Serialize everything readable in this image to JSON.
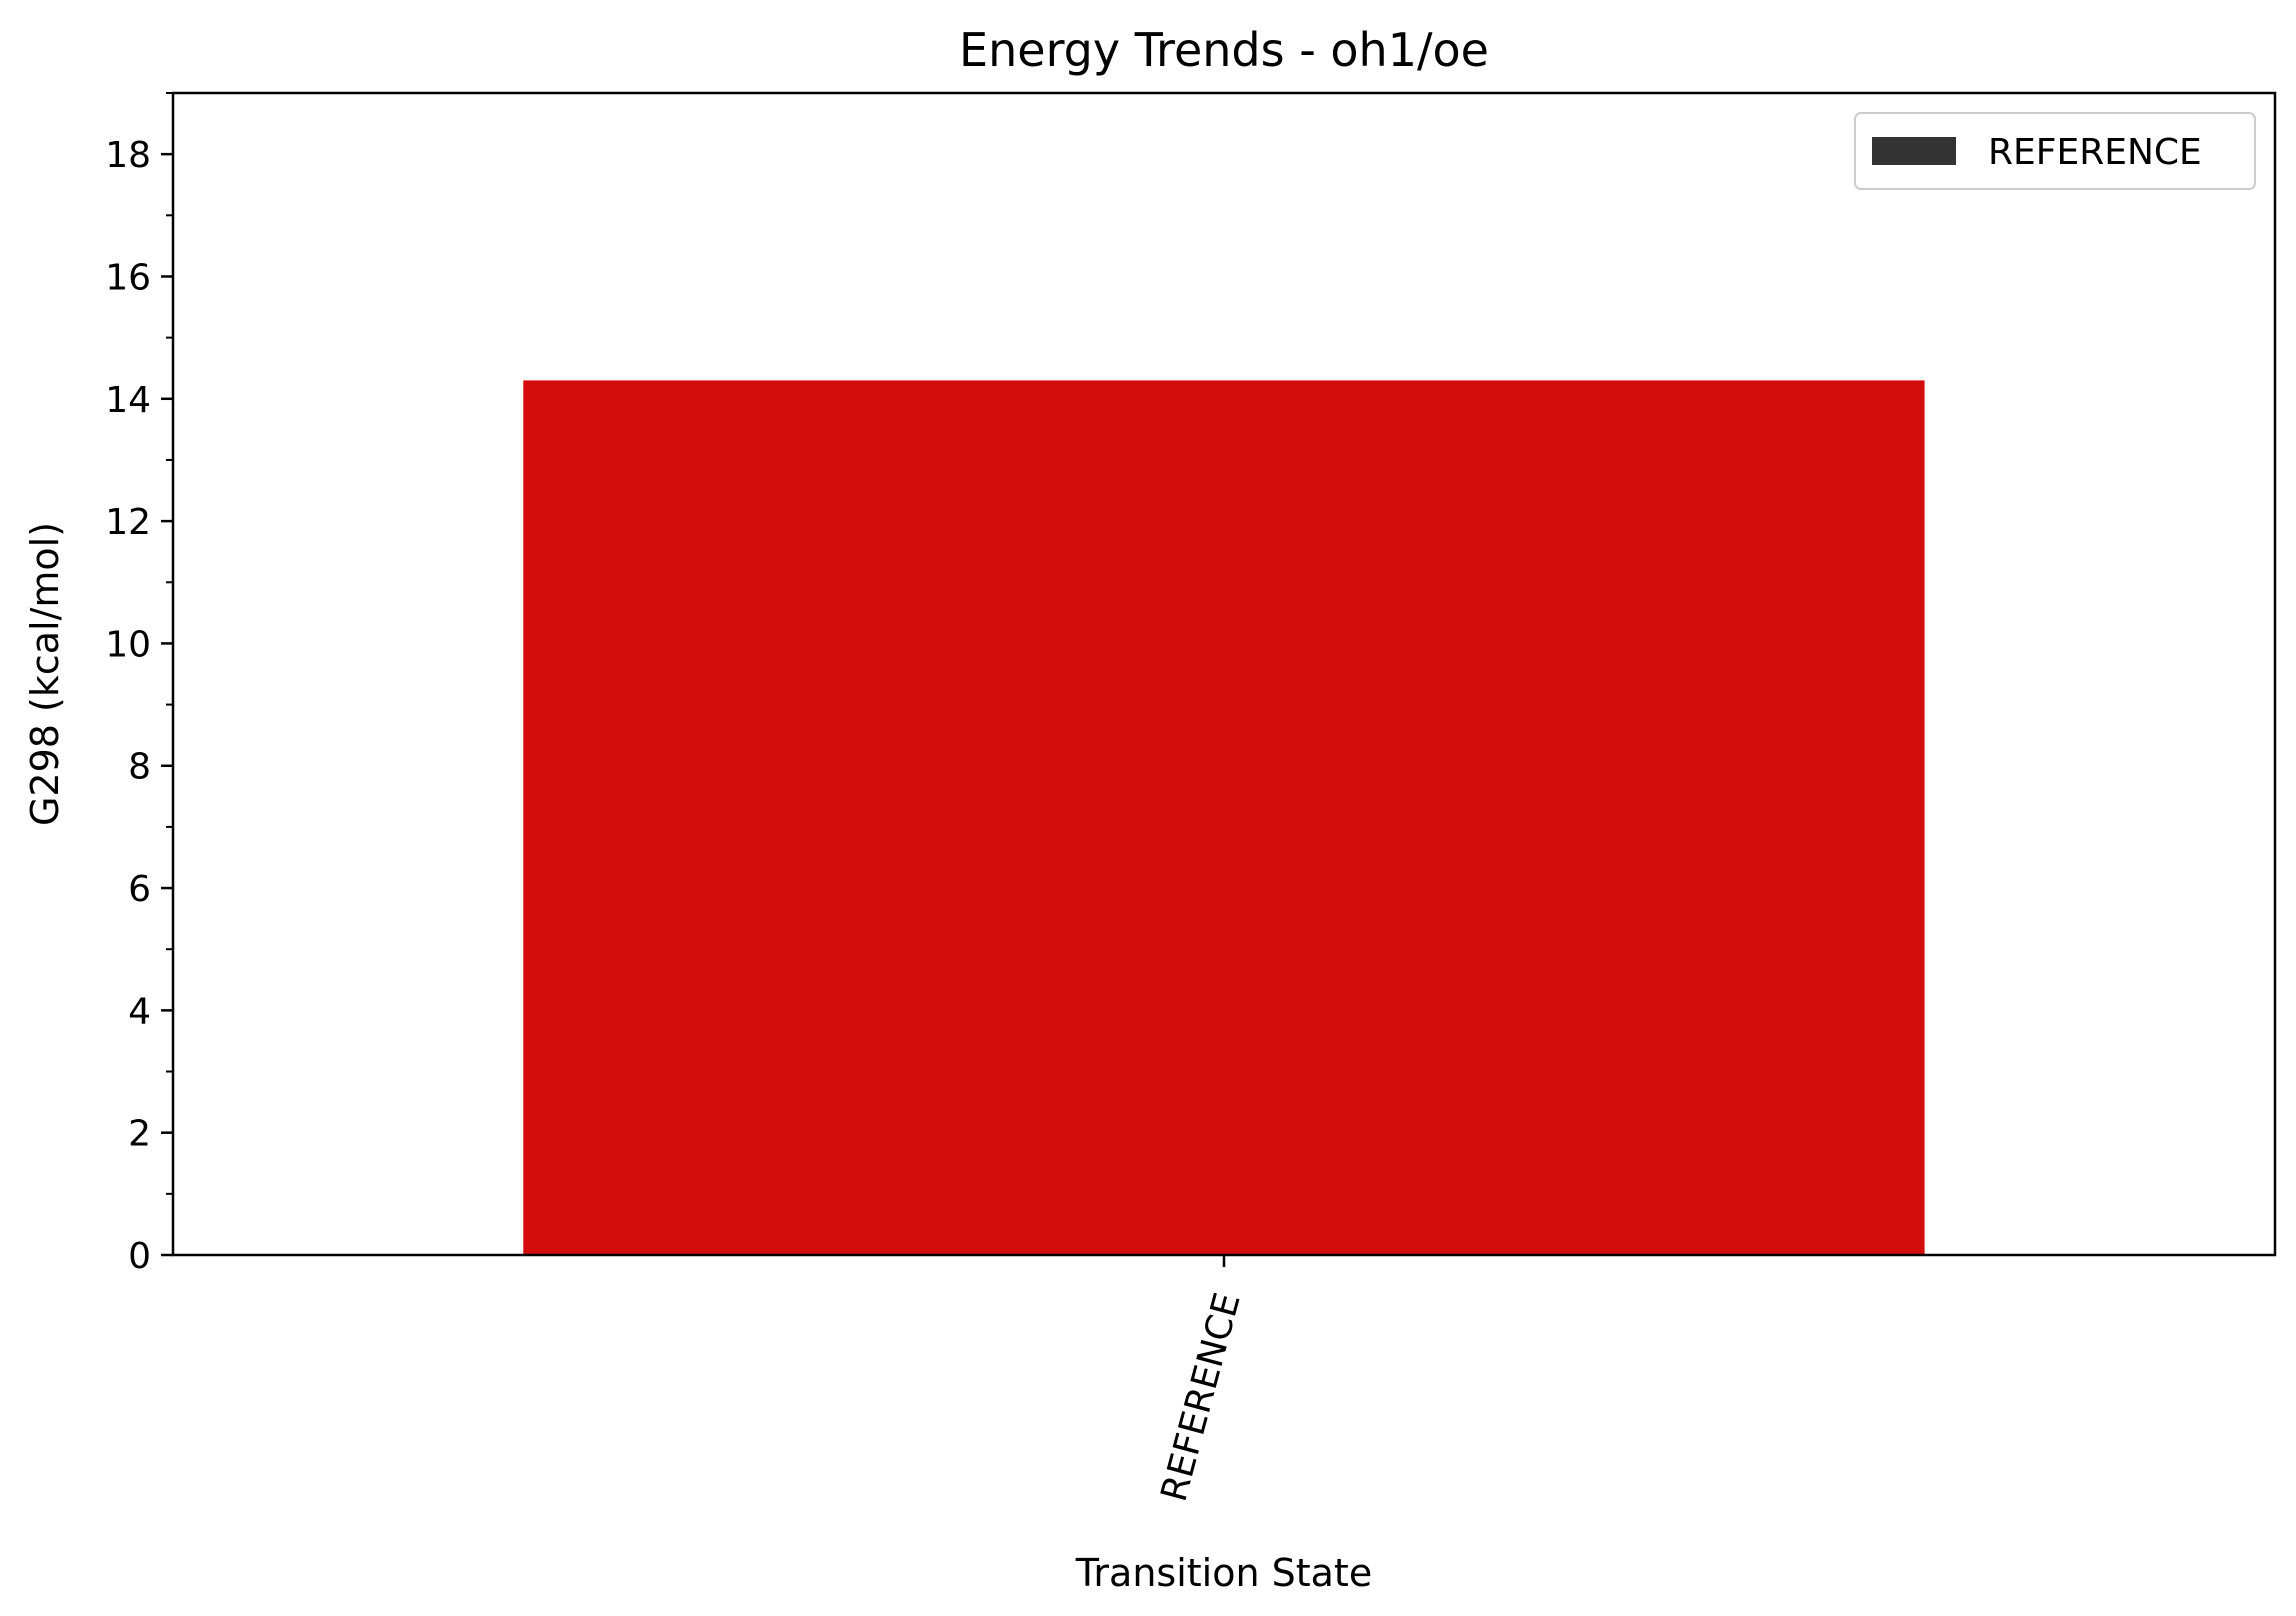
{
  "chart_data": {
    "type": "bar",
    "title": "Energy Trends - oh1/oe",
    "xlabel": "Transition State",
    "ylabel": "G298 (kcal/mol)",
    "categories": [
      "REFERENCE"
    ],
    "values": [
      14.3
    ],
    "ylim": [
      0,
      19
    ],
    "yticks": [
      0,
      2,
      4,
      6,
      8,
      10,
      12,
      14,
      16,
      18
    ],
    "minor_tick_step": 1,
    "grid": false,
    "legend": {
      "placement": "top-right",
      "entries": [
        {
          "label": "REFERENCE",
          "color": "#333333"
        }
      ]
    },
    "bar_color": "#d40c0c"
  }
}
